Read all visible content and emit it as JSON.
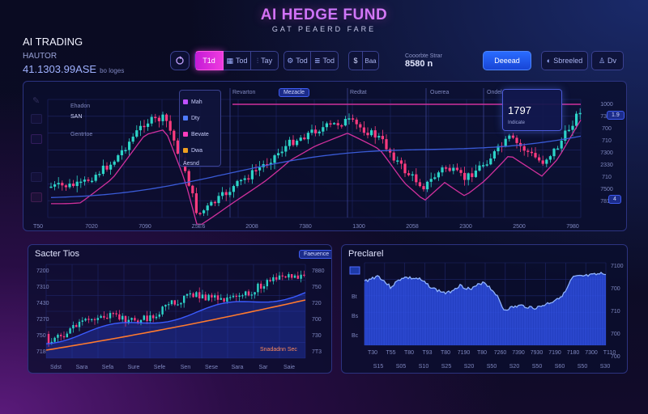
{
  "header": {
    "title": "AI HEDGE FUND",
    "subtitle": "GAT PEAERD FARE"
  },
  "brand": {
    "name": "AI TRADING",
    "sub": "HAUTOR",
    "value": "41.1303.99ASE",
    "value_note": "bo loges"
  },
  "toolbar": {
    "items": [
      {
        "label": "",
        "icon": "refresh-icon"
      },
      {
        "label": "T1d",
        "active": true
      },
      {
        "label": "Tod",
        "icon": "grid-icon"
      },
      {
        "label": "Tay",
        "icon": "candle-icon"
      },
      {
        "label": "Tod",
        "icon": "gear-icon"
      },
      {
        "label": "Tod",
        "icon": "layers-icon"
      },
      {
        "label": "",
        "icon": "dollar-icon"
      },
      {
        "label": "Baa",
        "icon": "cube-icon"
      }
    ]
  },
  "stat": {
    "label": "Cooorbte Strar",
    "value": "8580 n"
  },
  "actions": {
    "primary": "Deeead",
    "secondary": "Sbreeled",
    "tertiary": "Dv"
  },
  "main_chart": {
    "labels_top": [
      "Ehadon",
      "Revarton",
      "Redtat",
      "Ouerea",
      "Ondel"
    ],
    "badge": "Mezacle",
    "legend": [
      {
        "label": "Mah",
        "color": "#c050ff"
      },
      {
        "label": "Dty",
        "color": "#4f7bff"
      },
      {
        "label": "Bevate",
        "color": "#ff3dbd"
      },
      {
        "label": "Dwa",
        "color": "#f0a020"
      },
      {
        "label": "Aesnd"
      }
    ],
    "series_labels": [
      "SAN",
      "Gentrtoe"
    ],
    "tooltip": {
      "value": "1797",
      "label": "Indicate"
    },
    "y_right": [
      "1000",
      "7350",
      "700",
      "710",
      "7300",
      "2330",
      "710",
      "7500",
      "7810"
    ],
    "x_labels": [
      "T50",
      "7020",
      "7090",
      "Z5E6",
      "2008",
      "7380",
      "1300",
      "2058",
      "2300",
      "2500",
      "7980"
    ],
    "badges_right": [
      "1.9",
      "4"
    ],
    "colors": {
      "bull": "#2dd4c8",
      "bear": "#ff3b7f",
      "ma1": "#d0309c",
      "ma2": "#3a5bd8"
    }
  },
  "series_panel": {
    "title": "Sacter Tios",
    "badge": "Faeuence",
    "y_left": [
      "7200",
      "7310",
      "7430",
      "7270",
      "750",
      "718"
    ],
    "y_right": [
      "7880",
      "750",
      "720",
      "700",
      "730",
      "7T3"
    ],
    "x_labels": [
      "Sdst",
      "Sara",
      "Sefa",
      "Sure",
      "Sefe",
      "Sen",
      "Sese",
      "Sara",
      "Sar",
      "Saie"
    ],
    "annotation": "Snadadnn Sec",
    "colors": {
      "line1": "#ff7a2e",
      "line2": "#3b5bff"
    }
  },
  "pred_panel": {
    "title": "Preclarel",
    "y_left": [
      "Bt",
      "Bs",
      "Bc"
    ],
    "y_right": [
      "7100",
      "700",
      "710",
      "700",
      "700"
    ],
    "x_labels": [
      "T30",
      "T55",
      "T80",
      "T93",
      "T80",
      "7190",
      "T80",
      "7260",
      "7390",
      "7930",
      "7190",
      "7180",
      "7300",
      "T110"
    ],
    "x_labels2": [
      "S15",
      "S05",
      "S10",
      "S25",
      "S20",
      "S50",
      "S20",
      "S50",
      "S60",
      "S50",
      "S30"
    ],
    "colors": {
      "area": "#2a4ee8",
      "line": "#8fb2ff"
    }
  }
}
